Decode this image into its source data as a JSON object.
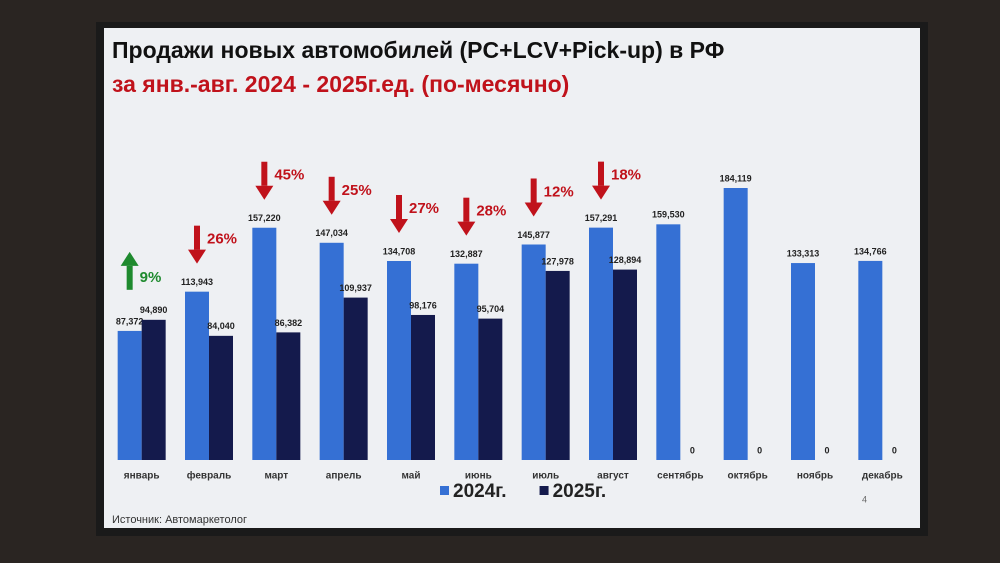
{
  "chart_data": {
    "type": "bar",
    "title": "Продажи новых автомобилей (PC+LCV+Pick-up) в РФ",
    "subtitle": "за янв.-авг. 2024 - 2025г.ед. (по-месячно)",
    "categories": [
      "январь",
      "февраль",
      "март",
      "апрель",
      "май",
      "июнь",
      "июль",
      "август",
      "сентябрь",
      "октябрь",
      "ноябрь",
      "декабрь"
    ],
    "series": [
      {
        "name": "2024г.",
        "color": "#3570d4",
        "values": [
          87372,
          113943,
          157220,
          147034,
          134708,
          132887,
          145877,
          157291,
          159530,
          184119,
          133313,
          134766
        ],
        "value_labels": [
          "87,372",
          "113,943",
          "157,220",
          "147,034",
          "134,708",
          "132,887",
          "145,877",
          "157,291",
          "159,530",
          "184,119",
          "133,313",
          "134,766"
        ]
      },
      {
        "name": "2025г.",
        "color": "#141a4c",
        "values": [
          94890,
          84040,
          86382,
          109937,
          98176,
          95704,
          127978,
          128894,
          0,
          0,
          0,
          0
        ],
        "value_labels": [
          "94,890",
          "84,040",
          "86,382",
          "109,937",
          "98,176",
          "95,704",
          "127,978",
          "128,894",
          "0",
          "0",
          "0",
          "0"
        ]
      }
    ],
    "annotations": [
      {
        "text": "9%",
        "direction": "up",
        "color": "#1e8a2e"
      },
      {
        "text": "26%",
        "direction": "down",
        "color": "#c0121b"
      },
      {
        "text": "45%",
        "direction": "down",
        "color": "#c0121b"
      },
      {
        "text": "25%",
        "direction": "down",
        "color": "#c0121b"
      },
      {
        "text": "27%",
        "direction": "down",
        "color": "#c0121b"
      },
      {
        "text": "28%",
        "direction": "down",
        "color": "#c0121b"
      },
      {
        "text": "12%",
        "direction": "down",
        "color": "#c0121b"
      },
      {
        "text": "18%",
        "direction": "down",
        "color": "#c0121b"
      }
    ],
    "source": "Источник: Автомаркетолог",
    "page_number": "4"
  }
}
